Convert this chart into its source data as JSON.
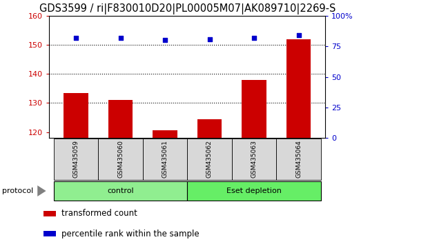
{
  "title": "GDS3599 / ri|F830010D20|PL00005M07|AK089710|2269-S",
  "samples": [
    "GSM435059",
    "GSM435060",
    "GSM435061",
    "GSM435062",
    "GSM435063",
    "GSM435064"
  ],
  "transformed_counts": [
    133.5,
    131.0,
    120.5,
    124.5,
    138.0,
    152.0
  ],
  "percentile_ranks": [
    82,
    82,
    80,
    81,
    82,
    84
  ],
  "ylim_left": [
    118,
    160
  ],
  "ylim_right": [
    0,
    100
  ],
  "yticks_left": [
    120,
    130,
    140,
    150,
    160
  ],
  "yticks_right": [
    0,
    25,
    50,
    75,
    100
  ],
  "groups": [
    {
      "label": "control",
      "color": "#90EE90",
      "start": 0,
      "end": 2
    },
    {
      "label": "Eset depletion",
      "color": "#66EE66",
      "start": 3,
      "end": 5
    }
  ],
  "bar_color": "#CC0000",
  "scatter_color": "#0000CC",
  "bar_width": 0.55,
  "bg_color": "#d8d8d8",
  "title_fontsize": 10.5,
  "legend_fontsize": 8.5,
  "tick_color_left": "#CC0000",
  "tick_color_right": "#0000CC"
}
